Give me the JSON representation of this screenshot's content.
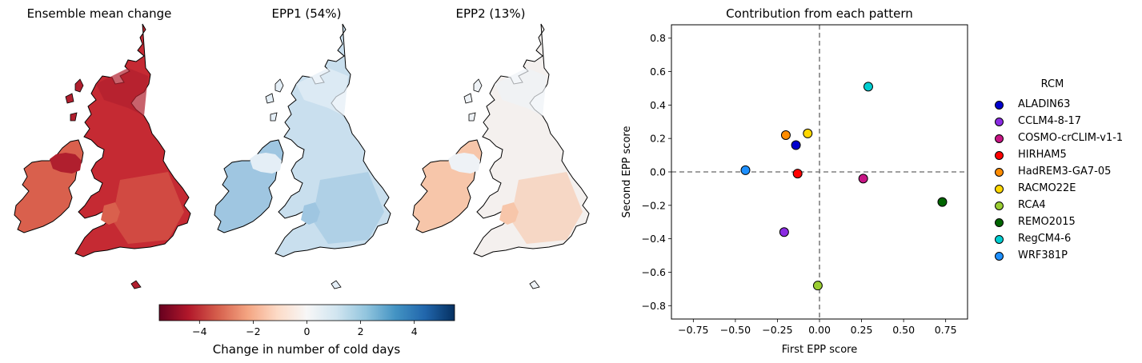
{
  "maps": {
    "panels": [
      {
        "title": "Ensemble mean change",
        "fill": "#c52a33",
        "fill2": "#d9604d",
        "fill3": "#b01f2e"
      },
      {
        "title": "EPP1 (54%)",
        "fill": "#c9dfee",
        "fill2": "#9fc6e1",
        "fill3": "#e4eef6"
      },
      {
        "title": "EPP2 (13%)",
        "fill": "#f4f0ee",
        "fill2": "#f7c6aa",
        "fill3": "#eef2f6"
      }
    ]
  },
  "colorbar": {
    "label": "Change in number of cold days",
    "ticks": [
      "−4",
      "−2",
      "0",
      "2",
      "4"
    ],
    "tick_values": [
      -4,
      -2,
      0,
      2,
      4
    ],
    "vmin": -5.5,
    "vmax": 5.5,
    "colors": [
      "#67001f",
      "#b2182b",
      "#d6604d",
      "#f4a582",
      "#fddbc7",
      "#f7f7f7",
      "#d1e5f0",
      "#92c5de",
      "#4393c3",
      "#2166ac",
      "#053061"
    ]
  },
  "chart_data": {
    "type": "scatter",
    "title": "Contribution from each pattern",
    "xlabel": "First EPP score",
    "ylabel": "Second EPP score",
    "xlim": [
      -0.88,
      0.88
    ],
    "ylim": [
      -0.88,
      0.88
    ],
    "xticks": [
      -0.75,
      -0.5,
      -0.25,
      0.0,
      0.25,
      0.5,
      0.75
    ],
    "xtick_labels": [
      "−0.75",
      "−0.50",
      "−0.25",
      "0.00",
      "0.25",
      "0.50",
      "0.75"
    ],
    "yticks": [
      -0.8,
      -0.6,
      -0.4,
      -0.2,
      0.0,
      0.2,
      0.4,
      0.6,
      0.8
    ],
    "ytick_labels": [
      "−0.8",
      "−0.6",
      "−0.4",
      "−0.2",
      "0.0",
      "0.2",
      "0.4",
      "0.6",
      "0.8"
    ],
    "grid": false,
    "reference_lines": {
      "x": 0,
      "y": 0,
      "style": "dashed",
      "color": "#808080"
    },
    "legend_title": "RCM",
    "legend_placement": "outside-right",
    "series": [
      {
        "name": "ALADIN63",
        "color": "#0000cd",
        "x": -0.14,
        "y": 0.16
      },
      {
        "name": "CCLM4-8-17",
        "color": "#8a2be2",
        "x": -0.21,
        "y": -0.36
      },
      {
        "name": "COSMO-crCLIM-v1-1",
        "color": "#c71585",
        "x": 0.26,
        "y": -0.04
      },
      {
        "name": "HIRHAM5",
        "color": "#ff0000",
        "x": -0.13,
        "y": -0.01
      },
      {
        "name": "HadREM3-GA7-05",
        "color": "#ff8c00",
        "x": -0.2,
        "y": 0.22
      },
      {
        "name": "RACMO22E",
        "color": "#ffd700",
        "x": -0.07,
        "y": 0.23
      },
      {
        "name": "RCA4",
        "color": "#9acd32",
        "x": -0.01,
        "y": -0.68
      },
      {
        "name": "REMO2015",
        "color": "#006400",
        "x": 0.73,
        "y": -0.18
      },
      {
        "name": "RegCM4-6",
        "color": "#00ced1",
        "x": 0.29,
        "y": 0.51
      },
      {
        "name": "WRF381P",
        "color": "#1e90ff",
        "x": -0.44,
        "y": 0.01
      }
    ]
  }
}
